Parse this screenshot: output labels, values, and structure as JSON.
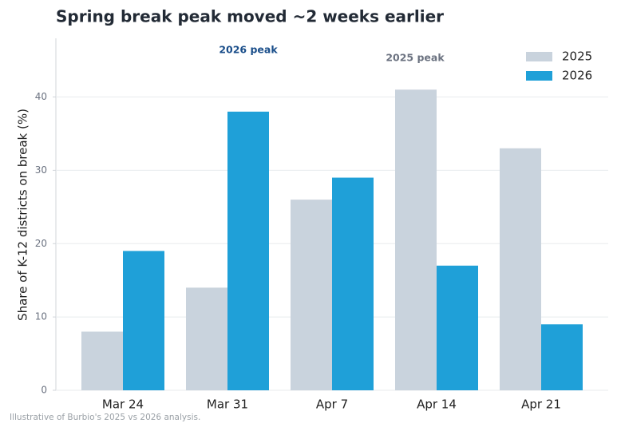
{
  "chart_data": {
    "type": "bar",
    "title": "Spring break peak moved ~2 weeks earlier",
    "ylabel": "Share of K-12 districts on break (%)",
    "footnote": "Illustrative of Burbio's 2025 vs 2026 analysis.",
    "annotations": [
      "2026 peak",
      "2025 peak"
    ],
    "categories": [
      "Mar 24",
      "Mar 31",
      "Apr 7",
      "Apr 14",
      "Apr 21"
    ],
    "series": [
      {
        "name": "2025",
        "color": "#c9d3dd",
        "values": [
          8,
          14,
          26,
          41,
          33
        ]
      },
      {
        "name": "2026",
        "color": "#1fa0d8",
        "values": [
          19,
          38,
          29,
          17,
          9
        ]
      }
    ],
    "ylim": [
      0,
      48
    ],
    "yticks": [
      0,
      10,
      20,
      30,
      40
    ],
    "grid": true,
    "legend": "upper right"
  }
}
